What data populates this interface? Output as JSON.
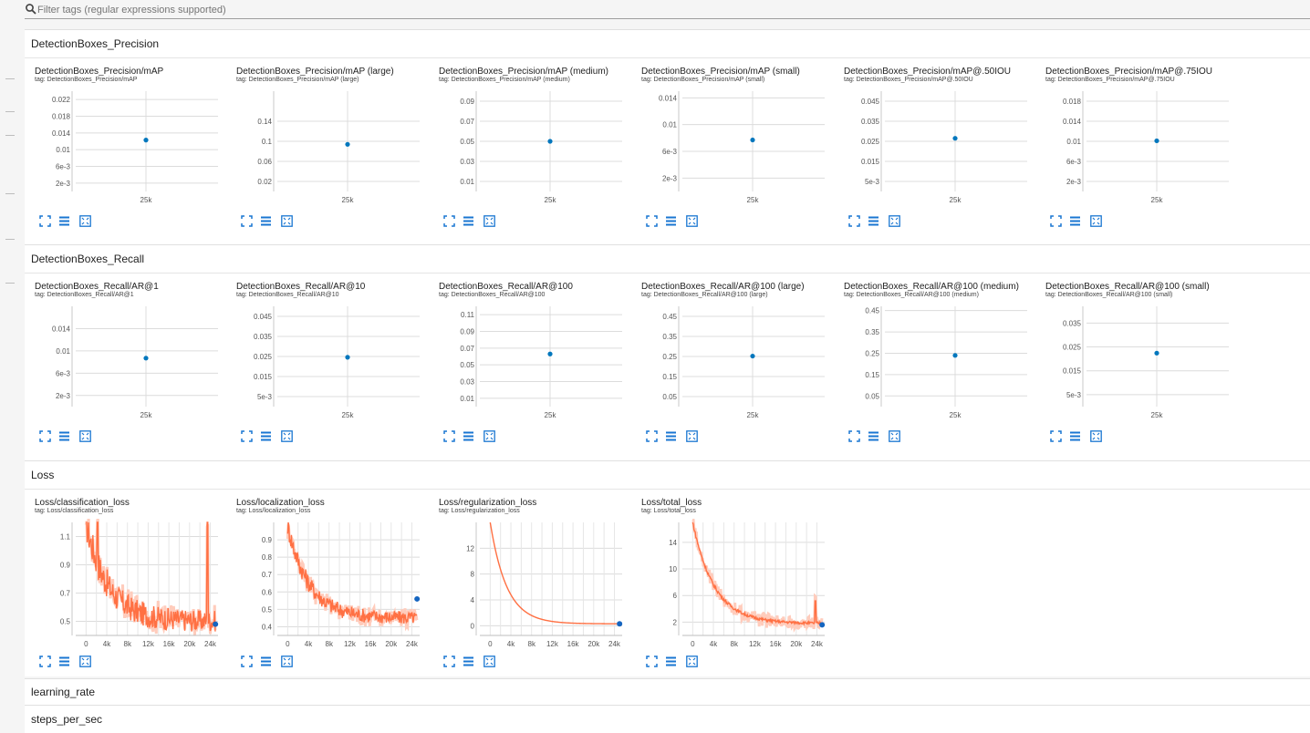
{
  "filter": {
    "placeholder": "Filter tags (regular expressions supported)"
  },
  "colors": {
    "accent": "#1976d2",
    "point": "#0277bd",
    "loss_line": "#ff7043",
    "loss_smooth_bg": "#ffccbc"
  },
  "categories": [
    {
      "name": "DetectionBoxes_Precision",
      "cards": [
        {
          "title": "DetectionBoxes_Precision/mAP",
          "tag": "tag: DetectionBoxes_Precision/mAP",
          "chart_data": {
            "type": "scatter",
            "ylim": [
              0,
              0.024
            ],
            "yticks": [
              "0.022",
              "0.018",
              "0.014",
              "0.01",
              "6e-3",
              "2e-3"
            ],
            "ytick_values": [
              0.022,
              0.018,
              0.014,
              0.01,
              0.006,
              0.002
            ],
            "xticks": [
              "25k"
            ],
            "points": [
              {
                "x": "25k",
                "y": 0.0123
              }
            ]
          }
        },
        {
          "title": "DetectionBoxes_Precision/mAP (large)",
          "tag": "tag: DetectionBoxes_Precision/mAP (large)",
          "chart_data": {
            "type": "scatter",
            "ylim": [
              0,
              0.2
            ],
            "yticks": [
              "0.14",
              "0.1",
              "0.06",
              "0.02"
            ],
            "ytick_values": [
              0.14,
              0.1,
              0.06,
              0.02
            ],
            "xticks": [
              "25k"
            ],
            "points": [
              {
                "x": "25k",
                "y": 0.094
              }
            ]
          }
        },
        {
          "title": "DetectionBoxes_Precision/mAP (medium)",
          "tag": "tag: DetectionBoxes_Precision/mAP (medium)",
          "chart_data": {
            "type": "scatter",
            "ylim": [
              0,
              0.1
            ],
            "yticks": [
              "0.09",
              "0.07",
              "0.05",
              "0.03",
              "0.01"
            ],
            "ytick_values": [
              0.09,
              0.07,
              0.05,
              0.03,
              0.01
            ],
            "xticks": [
              "25k"
            ],
            "points": [
              {
                "x": "25k",
                "y": 0.05
              }
            ]
          }
        },
        {
          "title": "DetectionBoxes_Precision/mAP (small)",
          "tag": "tag: DetectionBoxes_Precision/mAP (small)",
          "chart_data": {
            "type": "scatter",
            "ylim": [
              0,
              0.015
            ],
            "yticks": [
              "0.014",
              "0.01",
              "6e-3",
              "2e-3"
            ],
            "ytick_values": [
              0.014,
              0.01,
              0.006,
              0.002
            ],
            "xticks": [
              "25k"
            ],
            "points": [
              {
                "x": "25k",
                "y": 0.0077
              }
            ]
          }
        },
        {
          "title": "DetectionBoxes_Precision/mAP@.50IOU",
          "tag": "tag: DetectionBoxes_Precision/mAP@.50IOU",
          "chart_data": {
            "type": "scatter",
            "ylim": [
              0,
              0.05
            ],
            "yticks": [
              "0.045",
              "0.035",
              "0.025",
              "0.015",
              "5e-3"
            ],
            "ytick_values": [
              0.045,
              0.035,
              0.025,
              0.015,
              0.005
            ],
            "xticks": [
              "25k"
            ],
            "points": [
              {
                "x": "25k",
                "y": 0.0265
              }
            ]
          }
        },
        {
          "title": "DetectionBoxes_Precision/mAP@.75IOU",
          "tag": "tag: DetectionBoxes_Precision/mAP@.75IOU",
          "chart_data": {
            "type": "scatter",
            "ylim": [
              0,
              0.02
            ],
            "yticks": [
              "0.018",
              "0.014",
              "0.01",
              "6e-3",
              "2e-3"
            ],
            "ytick_values": [
              0.018,
              0.014,
              0.01,
              0.006,
              0.002
            ],
            "xticks": [
              "25k"
            ],
            "points": [
              {
                "x": "25k",
                "y": 0.0101
              }
            ]
          }
        }
      ]
    },
    {
      "name": "DetectionBoxes_Recall",
      "cards": [
        {
          "title": "DetectionBoxes_Recall/AR@1",
          "tag": "tag: DetectionBoxes_Recall/AR@1",
          "chart_data": {
            "type": "scatter",
            "ylim": [
              0,
              0.018
            ],
            "yticks": [
              "0.014",
              "0.01",
              "6e-3",
              "2e-3"
            ],
            "ytick_values": [
              0.014,
              0.01,
              0.006,
              0.002
            ],
            "xticks": [
              "25k"
            ],
            "points": [
              {
                "x": "25k",
                "y": 0.0087
              }
            ]
          }
        },
        {
          "title": "DetectionBoxes_Recall/AR@10",
          "tag": "tag: DetectionBoxes_Recall/AR@10",
          "chart_data": {
            "type": "scatter",
            "ylim": [
              0,
              0.05
            ],
            "yticks": [
              "0.045",
              "0.035",
              "0.025",
              "0.015",
              "5e-3"
            ],
            "ytick_values": [
              0.045,
              0.035,
              0.025,
              0.015,
              0.005
            ],
            "xticks": [
              "25k"
            ],
            "points": [
              {
                "x": "25k",
                "y": 0.0246
              }
            ]
          }
        },
        {
          "title": "DetectionBoxes_Recall/AR@100",
          "tag": "tag: DetectionBoxes_Recall/AR@100",
          "chart_data": {
            "type": "scatter",
            "ylim": [
              0,
              0.12
            ],
            "yticks": [
              "0.11",
              "0.09",
              "0.07",
              "0.05",
              "0.03",
              "0.01"
            ],
            "ytick_values": [
              0.11,
              0.09,
              0.07,
              0.05,
              0.03,
              0.01
            ],
            "xticks": [
              "25k"
            ],
            "points": [
              {
                "x": "25k",
                "y": 0.063
              }
            ]
          }
        },
        {
          "title": "DetectionBoxes_Recall/AR@100 (large)",
          "tag": "tag: DetectionBoxes_Recall/AR@100 (large)",
          "chart_data": {
            "type": "scatter",
            "ylim": [
              0,
              0.5
            ],
            "yticks": [
              "0.45",
              "0.35",
              "0.25",
              "0.15",
              "0.05"
            ],
            "ytick_values": [
              0.45,
              0.35,
              0.25,
              0.15,
              0.05
            ],
            "xticks": [
              "25k"
            ],
            "points": [
              {
                "x": "25k",
                "y": 0.252
              }
            ]
          }
        },
        {
          "title": "DetectionBoxes_Recall/AR@100 (medium)",
          "tag": "tag: DetectionBoxes_Recall/AR@100 (medium)",
          "chart_data": {
            "type": "scatter",
            "ylim": [
              0,
              0.47
            ],
            "yticks": [
              "0.45",
              "0.35",
              "0.25",
              "0.15",
              "0.05"
            ],
            "ytick_values": [
              0.45,
              0.35,
              0.25,
              0.15,
              0.05
            ],
            "xticks": [
              "25k"
            ],
            "points": [
              {
                "x": "25k",
                "y": 0.24
              }
            ]
          }
        },
        {
          "title": "DetectionBoxes_Recall/AR@100 (small)",
          "tag": "tag: DetectionBoxes_Recall/AR@100 (small)",
          "chart_data": {
            "type": "scatter",
            "ylim": [
              0,
              0.042
            ],
            "yticks": [
              "0.035",
              "0.025",
              "0.015",
              "5e-3"
            ],
            "ytick_values": [
              0.035,
              0.025,
              0.015,
              0.005
            ],
            "xticks": [
              "25k"
            ],
            "points": [
              {
                "x": "25k",
                "y": 0.0224
              }
            ]
          }
        }
      ]
    },
    {
      "name": "Loss",
      "cards": [
        {
          "title": "Loss/classification_loss",
          "tag": "tag: Loss/classification_loss",
          "chart_data": {
            "type": "line",
            "series_shape": "noisy_decay",
            "xlim": [
              -2000,
              25500
            ],
            "ylim": [
              0.4,
              1.2
            ],
            "yticks": [
              "1.1",
              "0.9",
              "0.7",
              "0.5"
            ],
            "ytick_values": [
              1.1,
              0.9,
              0.7,
              0.5
            ],
            "xticks": [
              "0",
              "4k",
              "8k",
              "12k",
              "16k",
              "20k",
              "24k"
            ],
            "xtick_values": [
              0,
              4000,
              8000,
              12000,
              16000,
              20000,
              24000
            ],
            "start": 1.2,
            "end": 0.5,
            "noise": 0.12,
            "spikes": [
              [
                2200,
                1.2
              ],
              [
                23500,
                1.2
              ]
            ],
            "last_point": {
              "x": 25000,
              "y": 0.48
            }
          }
        },
        {
          "title": "Loss/localization_loss",
          "tag": "tag: Loss/localization_loss",
          "chart_data": {
            "type": "line",
            "series_shape": "noisy_decay",
            "xlim": [
              -2000,
              25500
            ],
            "ylim": [
              0.35,
              1.0
            ],
            "yticks": [
              "0.9",
              "0.8",
              "0.7",
              "0.6",
              "0.5",
              "0.4"
            ],
            "ytick_values": [
              0.9,
              0.8,
              0.7,
              0.6,
              0.5,
              0.4
            ],
            "xticks": [
              "0",
              "4k",
              "8k",
              "12k",
              "16k",
              "20k",
              "24k"
            ],
            "xtick_values": [
              0,
              4000,
              8000,
              12000,
              16000,
              20000,
              24000
            ],
            "start": 0.98,
            "end": 0.45,
            "noise": 0.06,
            "spikes": [],
            "last_point": {
              "x": 25000,
              "y": 0.56
            }
          }
        },
        {
          "title": "Loss/regularization_loss",
          "tag": "tag: Loss/regularization_loss",
          "chart_data": {
            "type": "line",
            "series_shape": "smooth_decay",
            "xlim": [
              -2000,
              25500
            ],
            "ylim": [
              -1.5,
              16
            ],
            "yticks": [
              "12",
              "8",
              "4",
              "0"
            ],
            "ytick_values": [
              12,
              8,
              4,
              0
            ],
            "xticks": [
              "0",
              "4k",
              "8k",
              "12k",
              "16k",
              "20k",
              "24k"
            ],
            "xtick_values": [
              0,
              4000,
              8000,
              12000,
              16000,
              20000,
              24000
            ],
            "start": 16,
            "end": 0.3,
            "noise": 0.0,
            "spikes": [],
            "last_point": {
              "x": 25000,
              "y": 0.3
            }
          }
        },
        {
          "title": "Loss/total_loss",
          "tag": "tag: Loss/total_loss",
          "chart_data": {
            "type": "line",
            "series_shape": "noisy_decay",
            "xlim": [
              -2000,
              25500
            ],
            "ylim": [
              0,
              17
            ],
            "yticks": [
              "14",
              "10",
              "6",
              "2"
            ],
            "ytick_values": [
              14,
              10,
              6,
              2
            ],
            "xticks": [
              "0",
              "4k",
              "8k",
              "12k",
              "16k",
              "20k",
              "24k"
            ],
            "xtick_values": [
              0,
              4000,
              8000,
              12000,
              16000,
              20000,
              24000
            ],
            "start": 17,
            "end": 1.8,
            "noise": 0.3,
            "spikes": [
              [
                23700,
                5.2
              ]
            ],
            "last_point": {
              "x": 25000,
              "y": 1.6
            }
          }
        }
      ]
    },
    {
      "name": "learning_rate",
      "cards": []
    },
    {
      "name": "steps_per_sec",
      "cards": []
    }
  ]
}
